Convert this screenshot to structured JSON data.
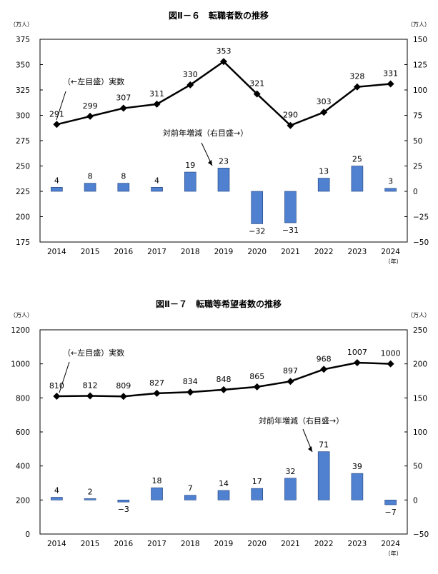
{
  "chart_data": [
    {
      "type": "bar+line",
      "title": "図Ⅱ－６　転職者数の推移",
      "left_unit": "（万人）",
      "right_unit": "（万人）",
      "x_unit": "（年）",
      "categories": [
        "2014",
        "2015",
        "2016",
        "2017",
        "2018",
        "2019",
        "2020",
        "2021",
        "2022",
        "2023",
        "2024"
      ],
      "left_ylim": [
        175,
        375
      ],
      "left_ticks": [
        175,
        200,
        225,
        250,
        275,
        300,
        325,
        350,
        375
      ],
      "right_ylim": [
        -50,
        150
      ],
      "right_ticks": [
        -50,
        -25,
        0,
        25,
        50,
        75,
        100,
        125,
        150
      ],
      "grid": false,
      "series": [
        {
          "name": "（←左目盛）実数",
          "type": "line",
          "axis": "left",
          "values": [
            291,
            299,
            307,
            311,
            330,
            353,
            321,
            290,
            303,
            328,
            331
          ],
          "color": "#000000"
        },
        {
          "name": "対前年増減（右目盛→）",
          "type": "bar",
          "axis": "right",
          "values": [
            4,
            8,
            8,
            4,
            19,
            23,
            -32,
            -31,
            13,
            25,
            3
          ],
          "color": "#4F81D0"
        }
      ]
    },
    {
      "type": "bar+line",
      "title": "図Ⅱ－７　転職等希望者数の推移",
      "left_unit": "（万人）",
      "right_unit": "（万人）",
      "x_unit": "（年）",
      "categories": [
        "2014",
        "2015",
        "2016",
        "2017",
        "2018",
        "2019",
        "2020",
        "2021",
        "2022",
        "2023",
        "2024"
      ],
      "left_ylim": [
        0,
        1200
      ],
      "left_ticks": [
        0,
        200,
        400,
        600,
        800,
        1000,
        1200
      ],
      "right_ylim": [
        -50,
        250
      ],
      "right_ticks": [
        -50,
        0,
        50,
        100,
        150,
        200,
        250
      ],
      "grid": false,
      "series": [
        {
          "name": "（←左目盛）実数",
          "type": "line",
          "axis": "left",
          "values": [
            810,
            812,
            809,
            827,
            834,
            848,
            865,
            897,
            968,
            1007,
            1000
          ],
          "color": "#000000"
        },
        {
          "name": "対前年増減（右目盛→）",
          "type": "bar",
          "axis": "right",
          "values": [
            4,
            2,
            -3,
            18,
            7,
            14,
            17,
            32,
            71,
            39,
            -7
          ],
          "color": "#4F81D0"
        }
      ]
    }
  ]
}
